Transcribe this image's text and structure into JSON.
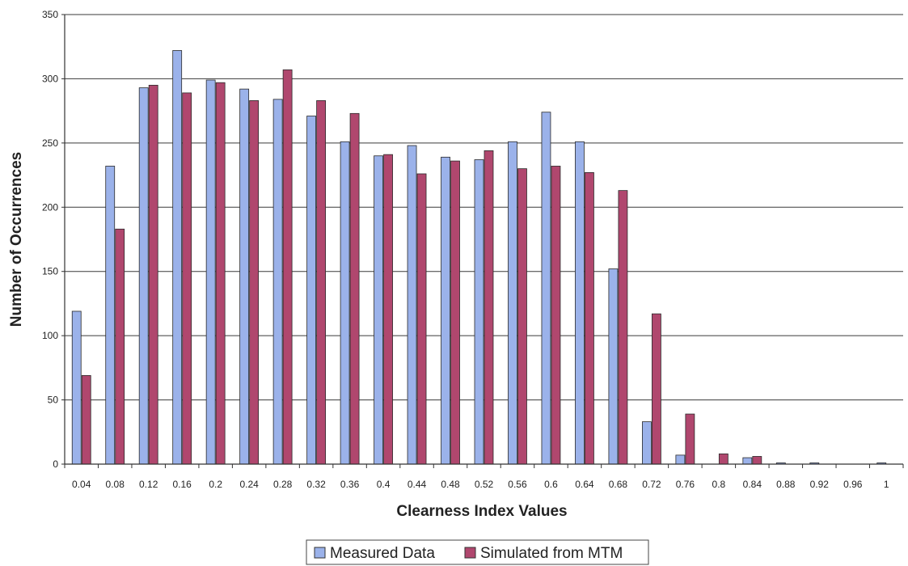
{
  "chart_data": {
    "type": "bar",
    "title": "",
    "xlabel": "Clearness Index Values",
    "ylabel": "Number of Occurrences",
    "ylim": [
      0,
      350
    ],
    "yticks": [
      0,
      50,
      100,
      150,
      200,
      250,
      300,
      350
    ],
    "grid": true,
    "legend_position": "bottom",
    "categories": [
      "0.04",
      "0.08",
      "0.12",
      "0.16",
      "0.2",
      "0.24",
      "0.28",
      "0.32",
      "0.36",
      "0.4",
      "0.44",
      "0.48",
      "0.52",
      "0.56",
      "0.6",
      "0.64",
      "0.68",
      "0.72",
      "0.76",
      "0.8",
      "0.84",
      "0.88",
      "0.92",
      "0.96",
      "1"
    ],
    "series": [
      {
        "name": "Measured Data",
        "color": "#9bb2ea",
        "values": [
          119,
          232,
          293,
          322,
          299,
          292,
          284,
          271,
          251,
          240,
          248,
          239,
          237,
          251,
          274,
          251,
          152,
          33,
          7,
          0,
          5,
          1,
          1,
          0,
          1
        ]
      },
      {
        "name": "Simulated from MTM",
        "color": "#b0476e",
        "values": [
          69,
          183,
          295,
          289,
          297,
          283,
          307,
          283,
          273,
          241,
          226,
          236,
          244,
          230,
          232,
          227,
          213,
          117,
          39,
          8,
          6,
          0,
          0,
          0,
          0
        ]
      }
    ]
  }
}
